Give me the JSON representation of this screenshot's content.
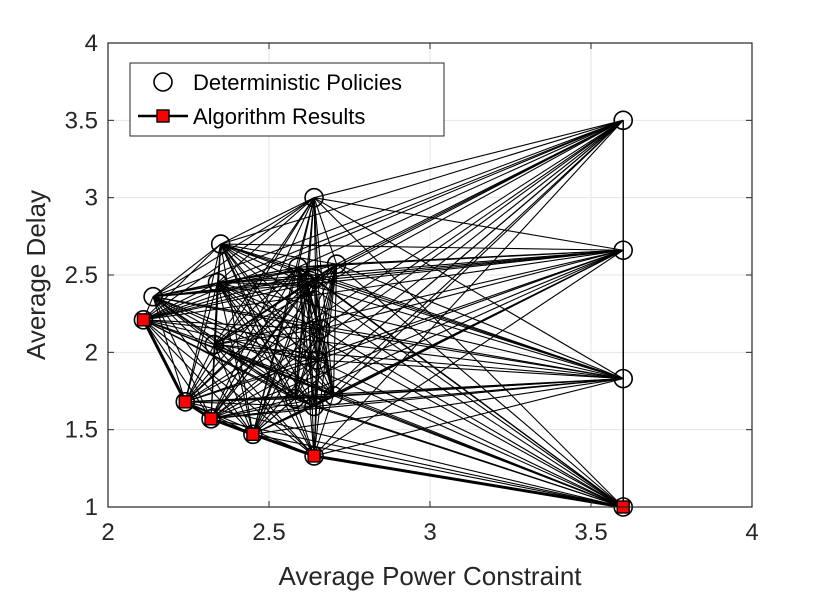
{
  "chart_data": {
    "type": "scatter",
    "title": "",
    "xlabel": "Average Power Constraint",
    "ylabel": "Average Delay",
    "xlim": [
      2,
      4
    ],
    "ylim": [
      1,
      4
    ],
    "xticks": [
      2,
      2.5,
      3,
      3.5,
      4
    ],
    "yticks": [
      1,
      1.5,
      2,
      2.5,
      3,
      3.5,
      4
    ],
    "xtick_labels": [
      "2",
      "2.5",
      "3",
      "3.5",
      "4"
    ],
    "ytick_labels": [
      "1",
      "1.5",
      "2",
      "2.5",
      "3",
      "3.5",
      "4"
    ],
    "grid": true,
    "legend_position": "top-left",
    "series": [
      {
        "name": "Deterministic Policies",
        "marker": "open-circle",
        "color": "#000000",
        "points": [
          [
            2.11,
            2.21
          ],
          [
            2.14,
            2.36
          ],
          [
            2.24,
            1.68
          ],
          [
            2.32,
            1.57
          ],
          [
            2.33,
            2.05
          ],
          [
            2.34,
            2.45
          ],
          [
            2.35,
            2.7
          ],
          [
            2.45,
            1.47
          ],
          [
            2.58,
            1.7
          ],
          [
            2.59,
            2.55
          ],
          [
            2.62,
            2.44
          ],
          [
            2.64,
            3.0
          ],
          [
            2.64,
            1.33
          ],
          [
            2.64,
            1.65
          ],
          [
            2.64,
            2.48
          ],
          [
            2.65,
            1.95
          ],
          [
            2.66,
            2.15
          ],
          [
            2.7,
            1.72
          ],
          [
            2.71,
            2.57
          ],
          [
            3.6,
            3.5
          ],
          [
            3.6,
            2.66
          ],
          [
            3.6,
            1.83
          ],
          [
            3.6,
            1.0
          ]
        ]
      },
      {
        "name": "Algorithm Results",
        "marker": "filled-square",
        "color": "#ff0000",
        "line_color": "#000000",
        "points": [
          [
            2.11,
            2.21
          ],
          [
            2.24,
            1.68
          ],
          [
            2.32,
            1.57
          ],
          [
            2.45,
            1.47
          ],
          [
            2.64,
            1.33
          ],
          [
            3.6,
            1.0
          ]
        ]
      }
    ]
  }
}
